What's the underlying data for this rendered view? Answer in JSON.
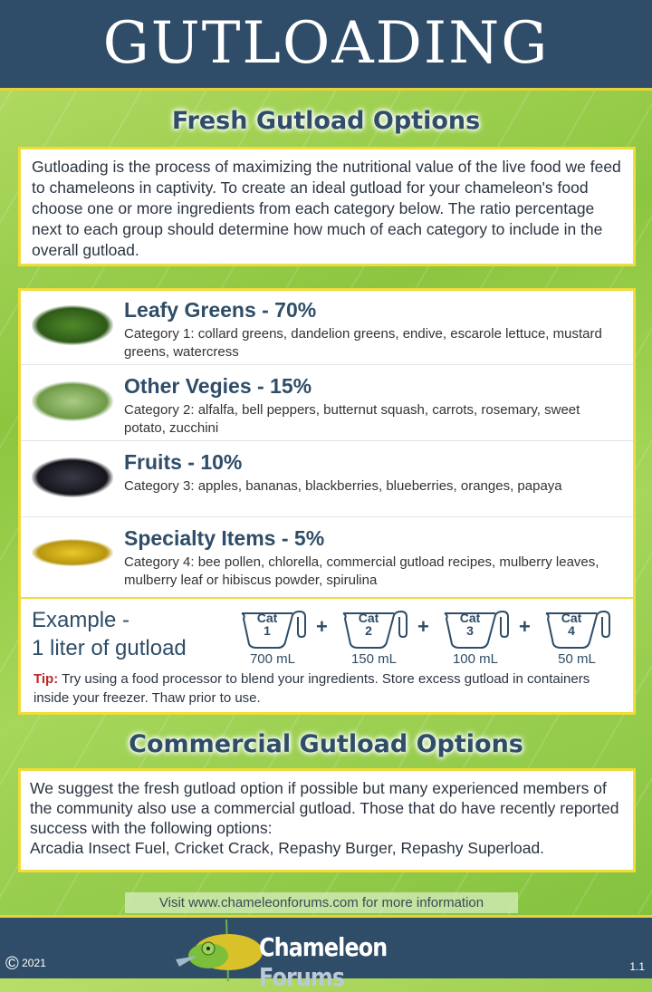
{
  "header": {
    "title": "GUTLOADING"
  },
  "fresh": {
    "title": "Fresh Gutload Options",
    "intro": "Gutloading is the process of maximizing the nutritional value of the live food we feed to chameleons in captivity.  To create an ideal gutload for your chameleon's food choose one or more ingredients from each category below.  The ratio percentage next to each group should determine how much of each category to include in the overall gutload.",
    "categories": [
      {
        "name": "Leafy Greens - 70%",
        "desc": "Category 1: collard greens, dandelion greens, endive, escarole lettuce, mustard greens, watercress",
        "image": "leafy-greens",
        "color": "#3f6e22"
      },
      {
        "name": "Other Vegies - 15%",
        "desc": "Category 2: alfalfa, bell peppers, butternut squash, carrots, rosemary, sweet potato, zucchini",
        "image": "alfalfa-sprouts",
        "color": "#8db865"
      },
      {
        "name": "Fruits - 10%",
        "desc": "Category 3: apples, bananas, blackberries, blueberries, oranges, papaya",
        "image": "blackberries",
        "color": "#1c1c24"
      },
      {
        "name": "Specialty Items - 5%",
        "desc": "Category 4: bee pollen, chlorella, commercial gutload recipes, mulberry leaves, mulberry leaf or hibiscus powder, spirulina",
        "image": "bee-pollen",
        "color": "#d6b51c"
      }
    ],
    "example": {
      "line1": "Example -",
      "line2": "1 liter of gutload",
      "cups": [
        {
          "label": "Cat",
          "num": "1",
          "amount": "700 mL"
        },
        {
          "label": "Cat",
          "num": "2",
          "amount": "150 mL"
        },
        {
          "label": "Cat",
          "num": "3",
          "amount": "100 mL"
        },
        {
          "label": "Cat",
          "num": "4",
          "amount": "50 mL"
        }
      ],
      "plus": "+"
    },
    "tip": {
      "label": "Tip:",
      "text": " Try using a food processor to blend your ingredients.  Store excess gutload in containers inside your freezer.  Thaw prior to use."
    }
  },
  "commercial": {
    "title": "Commercial Gutload Options",
    "text": "We suggest the fresh gutload option if possible but many experienced members of the community also use a commercial gutload.  Those that do have recently reported success with the following options:",
    "options": "Arcadia Insect Fuel, Cricket Crack, Repashy Burger, Repashy Superload."
  },
  "visit": "Visit www.chameleonforums.com for more information",
  "footer": {
    "logo_a": "Chameleon",
    "logo_b": "Forums",
    "copyright_symbol": "©",
    "year": "2021",
    "version": "1.1"
  }
}
